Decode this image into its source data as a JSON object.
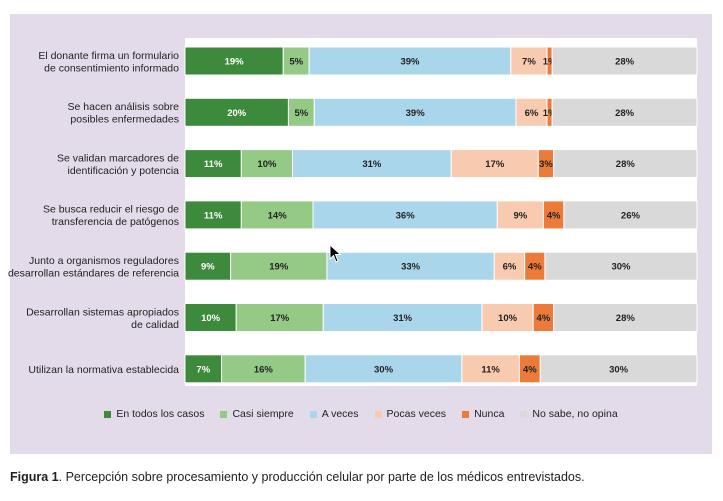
{
  "chart_data": {
    "type": "bar",
    "orientation": "horizontal",
    "stacked": true,
    "normalized": true,
    "categories": [
      [
        "El donante firma un formulario",
        "de consentimiento informado"
      ],
      [
        "Se hacen análisis sobre",
        "posibles enfermedades"
      ],
      [
        "Se validan marcadores de",
        "identificación y potencia"
      ],
      [
        "Se busca reducir el riesgo de",
        "transferencia de patógenos"
      ],
      [
        "Junto a organismos reguladores",
        "desarrollan estándares de referencia"
      ],
      [
        "Desarrollan sistemas apropiados",
        "de calidad"
      ],
      [
        "Utilizan la normativa establecida"
      ]
    ],
    "series": [
      {
        "name": "En todos los casos",
        "color": "#3d8a3d",
        "label_color": "#ffffff",
        "values": [
          19,
          20,
          11,
          11,
          9,
          10,
          7
        ]
      },
      {
        "name": "Casi siempre",
        "color": "#95c986",
        "label_color": "#222222",
        "values": [
          5,
          5,
          10,
          14,
          19,
          17,
          16
        ]
      },
      {
        "name": "A veces",
        "color": "#a9d6ea",
        "label_color": "#222222",
        "values": [
          39,
          39,
          31,
          36,
          33,
          31,
          30
        ]
      },
      {
        "name": "Pocas veces",
        "color": "#f8cbb0",
        "label_color": "#222222",
        "values": [
          7,
          6,
          17,
          9,
          6,
          10,
          11
        ]
      },
      {
        "name": "Nunca",
        "color": "#ec7b3a",
        "label_color": "#222222",
        "values": [
          1,
          1,
          3,
          4,
          4,
          4,
          4
        ]
      },
      {
        "name": "No sabe, no opina",
        "color": "#d9d9d9",
        "label_color": "#222222",
        "values": [
          28,
          28,
          28,
          26,
          30,
          28,
          30
        ]
      }
    ],
    "value_suffix": "%",
    "legend_position": "bottom",
    "grid": false
  },
  "caption": {
    "label": "Figura 1",
    "text": ". Percepción sobre procesamiento y producción celular por parte de los médicos entrevistados."
  }
}
